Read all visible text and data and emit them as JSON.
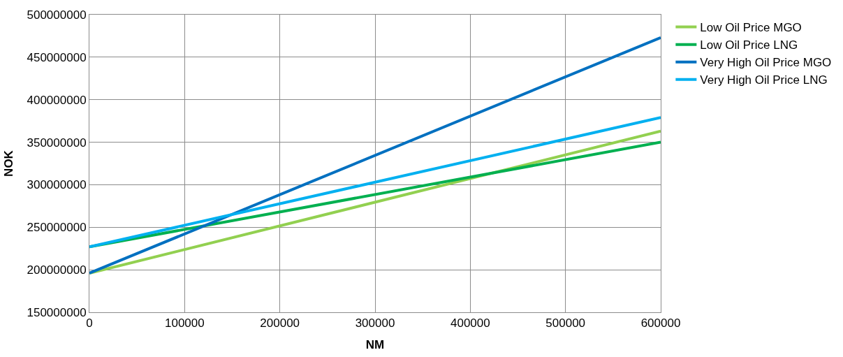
{
  "chart_data": {
    "type": "line",
    "xlabel": "NM",
    "ylabel": "NOK",
    "x": [
      0,
      600000
    ],
    "series": [
      {
        "name": "Low Oil Price MGO",
        "color": "#92d050",
        "values": [
          196000000,
          363000000
        ]
      },
      {
        "name": "Low Oil Price LNG",
        "color": "#00b050",
        "values": [
          227000000,
          350000000
        ]
      },
      {
        "name": "Very High Oil Price MGO",
        "color": "#0070c0",
        "values": [
          196000000,
          473000000
        ]
      },
      {
        "name": "Very High Oil Price LNG",
        "color": "#00b0f0",
        "values": [
          227000000,
          379000000
        ]
      }
    ],
    "xlim": [
      0,
      600000
    ],
    "xticks": [
      0,
      100000,
      200000,
      300000,
      400000,
      500000,
      600000
    ],
    "ylim": [
      150000000,
      500000000
    ],
    "yticks": [
      150000000,
      200000000,
      250000000,
      300000000,
      350000000,
      400000000,
      450000000,
      500000000
    ],
    "grid": true,
    "legend": "right",
    "marker": "none",
    "line_style": "solid"
  }
}
